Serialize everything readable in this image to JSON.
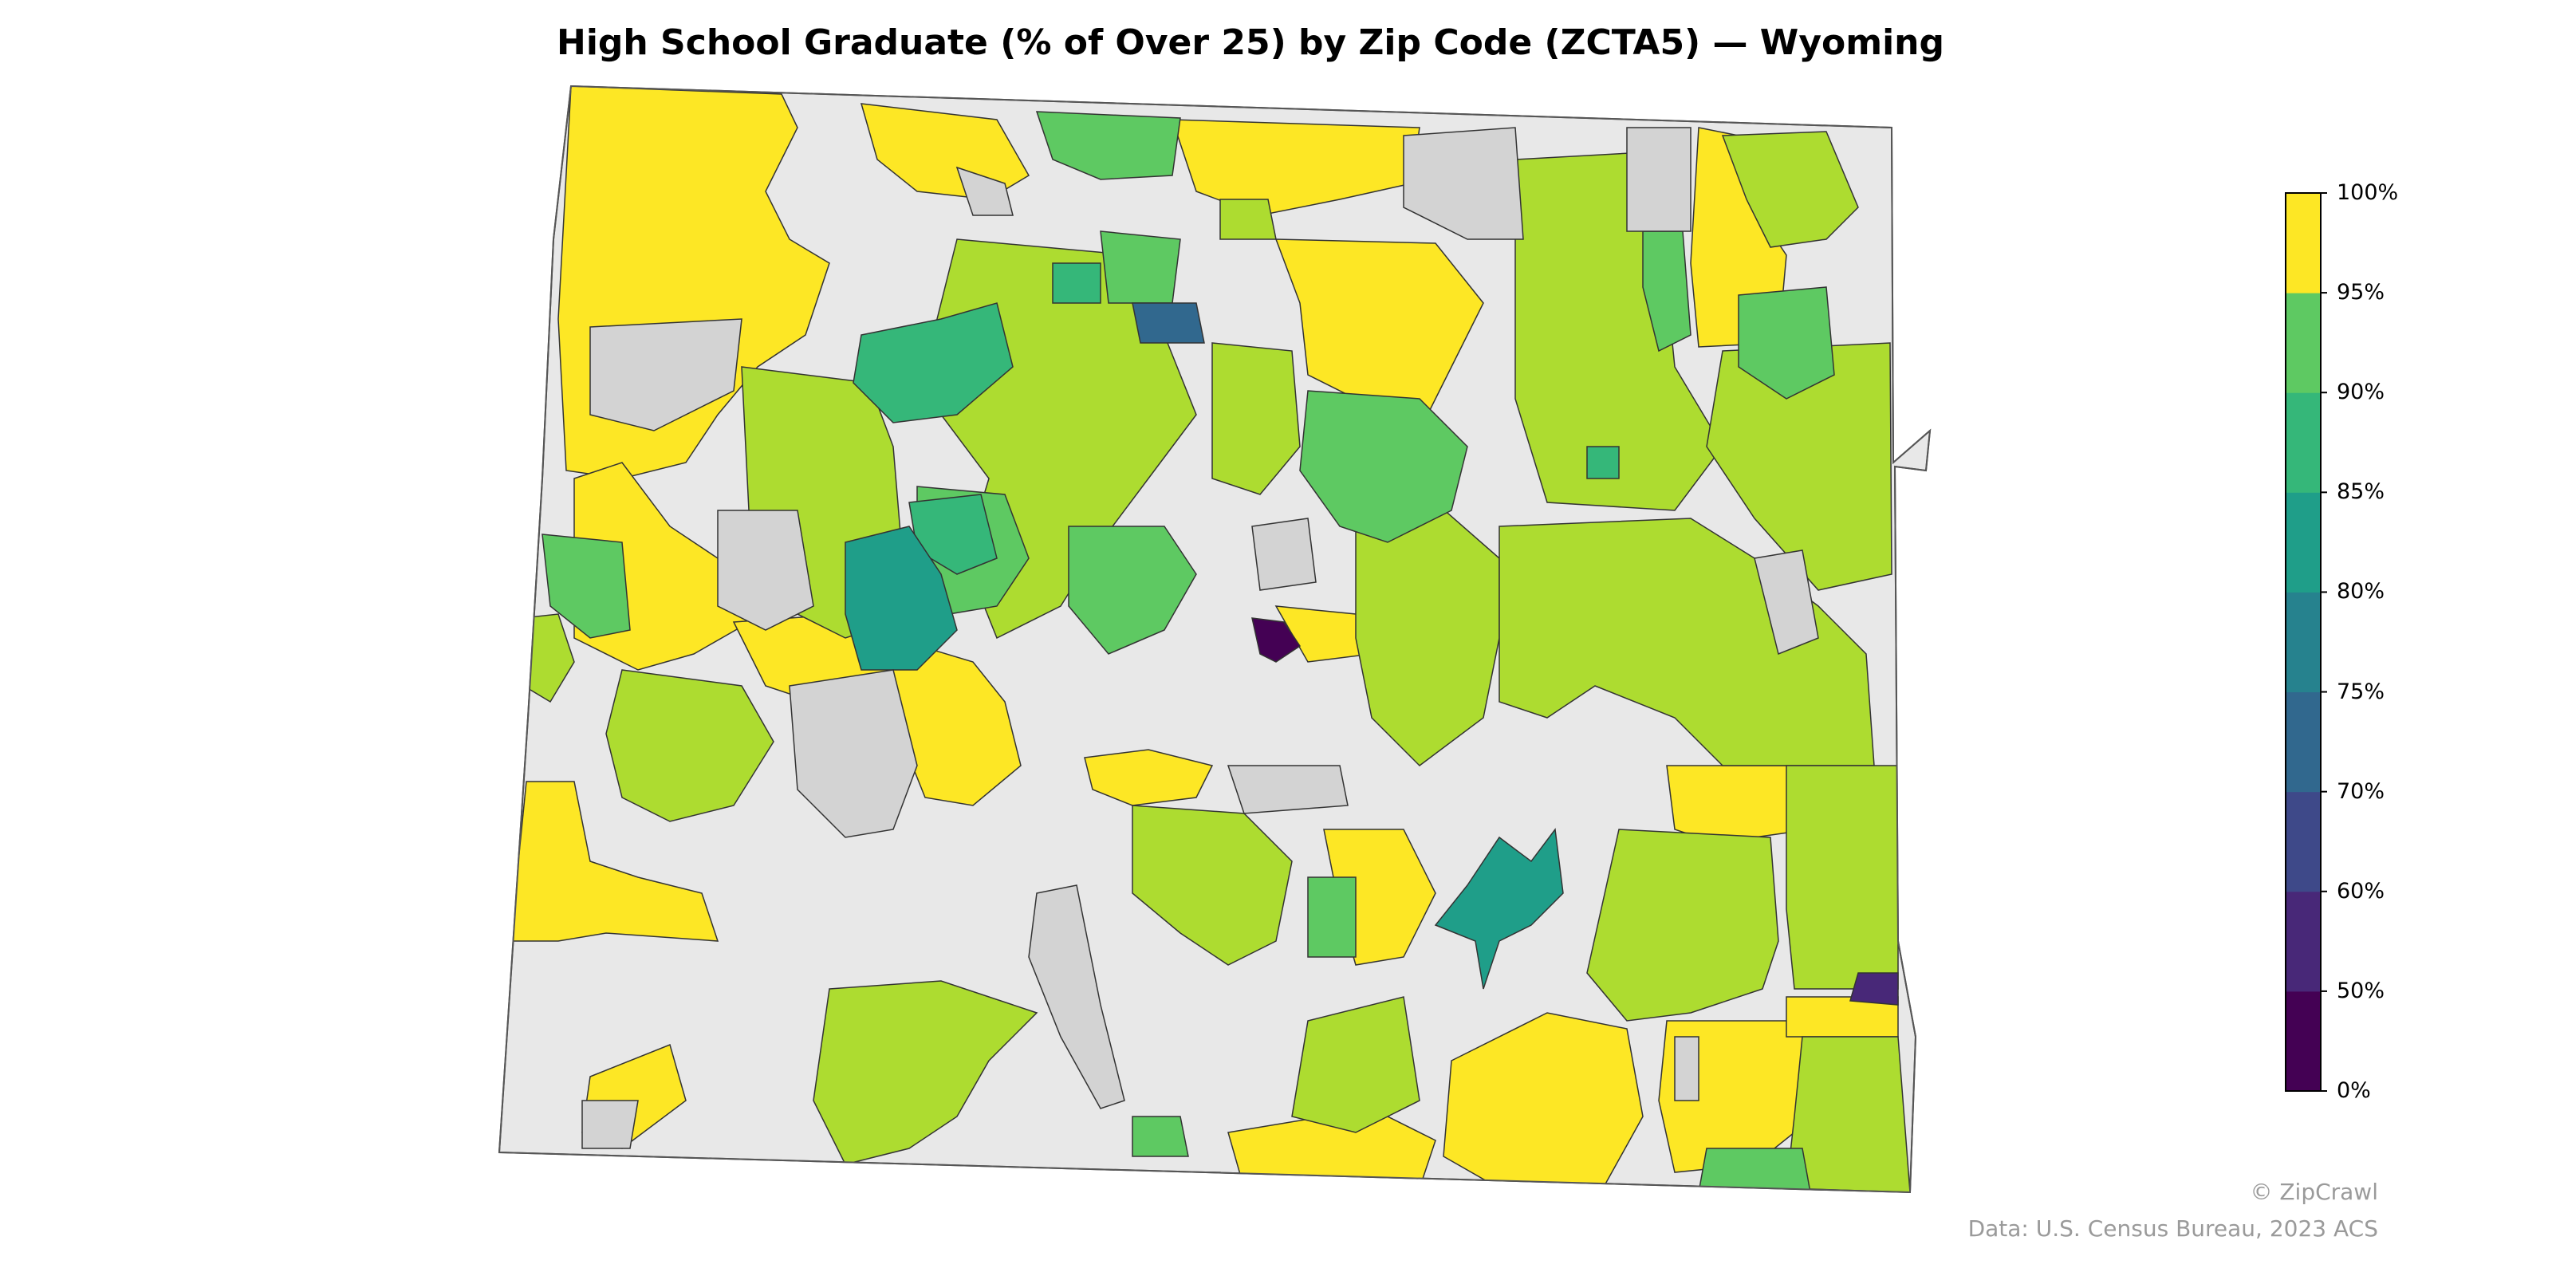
{
  "title": "High School Graduate (% of Over 25) by Zip Code (ZCTA5) — Wyoming",
  "credits": {
    "brand": "© ZipCrawl",
    "source": "Data: U.S. Census Bureau, 2023 ACS"
  },
  "colors": {
    "no_data": "#d3d3d3",
    "outside": "#e8e8e8",
    "border": "#333333"
  },
  "legend": {
    "bins": [
      {
        "label": "0%",
        "color": "#440154"
      },
      {
        "label": "50%",
        "color": "#482878"
      },
      {
        "label": "60%",
        "color": "#3e4989"
      },
      {
        "label": "70%",
        "color": "#31688e"
      },
      {
        "label": "75%",
        "color": "#26828e"
      },
      {
        "label": "80%",
        "color": "#1f9e89"
      },
      {
        "label": "85%",
        "color": "#35b779"
      },
      {
        "label": "90%",
        "color": "#5ec962"
      },
      {
        "label": "95%",
        "color": "#addc30"
      },
      {
        "label": "100%",
        "color": "#fde725"
      }
    ]
  }
}
